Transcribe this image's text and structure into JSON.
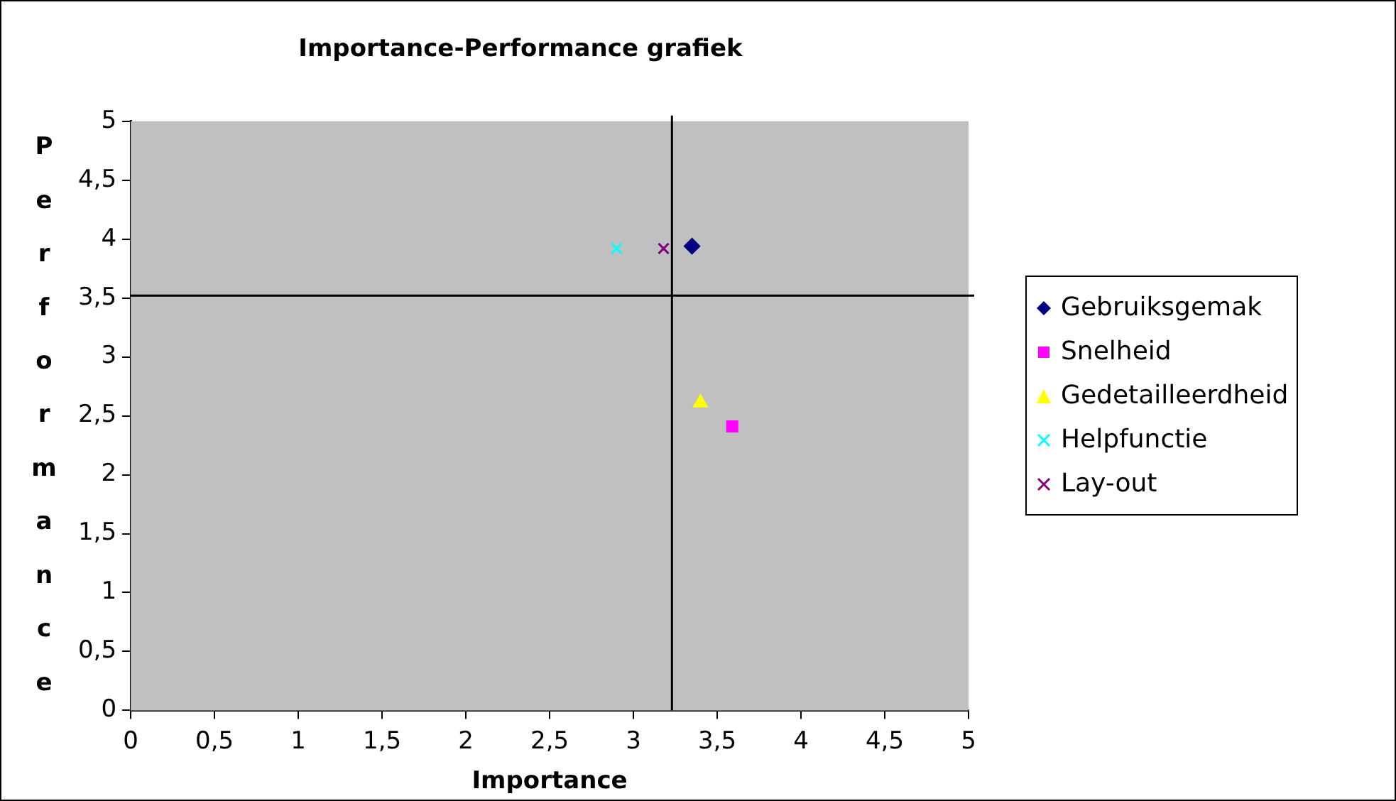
{
  "chart_data": {
    "type": "scatter",
    "title": "Importance-Performance grafiek",
    "xlabel": "Importance",
    "ylabel": "Performance",
    "series": [
      {
        "name": "Gebruiksgemak",
        "color": "#000080",
        "marker": "diamond",
        "x": [
          3.35
        ],
        "values": [
          3.94
        ]
      },
      {
        "name": "Snelheid",
        "color": "#ff00ff",
        "marker": "square",
        "x": [
          3.59
        ],
        "values": [
          2.41
        ]
      },
      {
        "name": "Gedetailleerdheid",
        "color": "#ffff00",
        "marker": "triangle",
        "x": [
          3.4
        ],
        "values": [
          2.61
        ]
      },
      {
        "name": "Helpfunctie",
        "color": "#00ffff",
        "marker": "cross",
        "x": [
          2.9
        ],
        "values": [
          3.92
        ]
      },
      {
        "name": "Lay-out",
        "color": "#800080",
        "marker": "cross",
        "x": [
          3.18
        ],
        "values": [
          3.92
        ]
      }
    ],
    "xlim": [
      0,
      5
    ],
    "ylim": [
      0,
      5
    ],
    "xticks": [
      0,
      {
        "value": 0.5,
        "label": "0,5"
      },
      1,
      {
        "value": 1.5,
        "label": "1,5"
      },
      2,
      {
        "value": 2.5,
        "label": "2,5"
      },
      3,
      {
        "value": 3.5,
        "label": "3,5"
      },
      4,
      {
        "value": 4.5,
        "label": "4,5"
      },
      5
    ],
    "yticks": [
      0,
      {
        "value": 0.5,
        "label": "0,5"
      },
      1,
      {
        "value": 1.5,
        "label": "1,5"
      },
      2,
      {
        "value": 2.5,
        "label": "2,5"
      },
      3,
      {
        "value": 3.5,
        "label": "3,5"
      },
      4,
      {
        "value": 4.5,
        "label": "4,5"
      },
      5
    ],
    "ref_lines": [
      {
        "axis": "x",
        "value": 3.23,
        "color": "#000000"
      },
      {
        "axis": "y",
        "value": 3.52,
        "color": "#000000"
      }
    ],
    "grid": false,
    "legend": "right"
  }
}
